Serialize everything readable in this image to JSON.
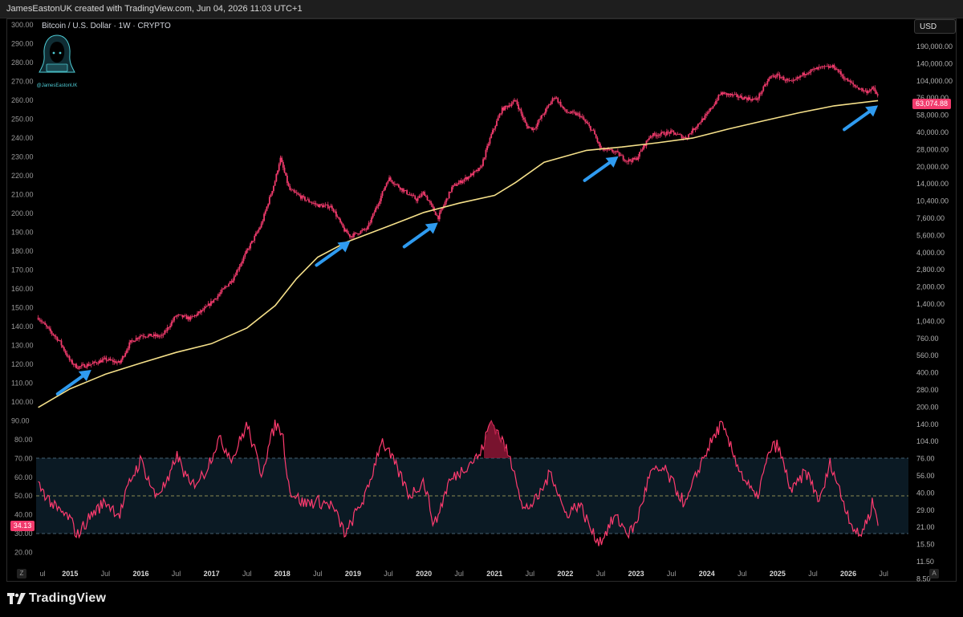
{
  "header": {
    "attribution": "JamesEastonUK created with TradingView.com, Jun 04, 2026 11:03 UTC+1"
  },
  "symbol": {
    "title": "Bitcoin / U.S. Dollar · 1W · CRYPTO"
  },
  "logo": {
    "caption": "@JamesEastonUK",
    "icon": "hooded-figure-icon"
  },
  "currency": "USD",
  "last_price_label": "63,074.88",
  "rsi_last_label": "34.13",
  "footer": {
    "brand": "TradingView",
    "icon": "tradingview-logo-icon",
    "left_button": "Z",
    "right_button": "A"
  },
  "colors": {
    "candles": "#f23b6d",
    "moving_average": "#f5e08a",
    "arrows": "#2f9bf0",
    "rsi_line": "#ff3b6f",
    "rsi_band": "#0b1a24",
    "band_border": "#5a7a90",
    "midline": "#b7b060"
  },
  "chart_data": [
    {
      "type": "candlestick",
      "scale": "log",
      "currency": "USD",
      "x_ticks": [
        "ul",
        "2015",
        "Jul",
        "2016",
        "Jul",
        "2017",
        "Jul",
        "2018",
        "Jul",
        "2019",
        "Jul",
        "2020",
        "Jul",
        "2021",
        "Jul",
        "2022",
        "Jul",
        "2023",
        "Jul",
        "2024",
        "Jul",
        "2025",
        "Jul",
        "2026",
        "Jul"
      ],
      "y_ticks_right": [
        "190,000.00",
        "140,000.00",
        "104,000.00",
        "76,000.00",
        "58,000.00",
        "40,000.00",
        "28,000.00",
        "20,000.00",
        "14,000.00",
        "10,400.00",
        "7,600.00",
        "5,600.00",
        "4,000.00",
        "2,800.00",
        "2,000.00",
        "1,400.00",
        "1,040.00",
        "760.00",
        "560.00",
        "400.00",
        "280.00",
        "200.00",
        "140.00",
        "104.00",
        "76.00",
        "56.00",
        "40.00",
        "29.00",
        "21.00",
        "15.50",
        "11.50",
        "8.50"
      ],
      "y_ticks_left": [
        "300.00",
        "290.00",
        "280.00",
        "270.00",
        "260.00",
        "250.00",
        "240.00",
        "230.00",
        "220.00",
        "210.00",
        "200.00",
        "190.00",
        "180.00",
        "170.00",
        "160.00",
        "150.00",
        "140.00",
        "130.00",
        "120.00",
        "110.00",
        "100.00",
        "90.00"
      ],
      "price_path": [
        [
          2014.55,
          620
        ],
        [
          2014.7,
          480
        ],
        [
          2014.85,
          380
        ],
        [
          2015.0,
          250
        ],
        [
          2015.1,
          220
        ],
        [
          2015.3,
          235
        ],
        [
          2015.5,
          260
        ],
        [
          2015.7,
          240
        ],
        [
          2015.85,
          370
        ],
        [
          2016.0,
          430
        ],
        [
          2016.3,
          420
        ],
        [
          2016.5,
          650
        ],
        [
          2016.7,
          610
        ],
        [
          2016.9,
          740
        ],
        [
          2017.1,
          1000
        ],
        [
          2017.3,
          1400
        ],
        [
          2017.5,
          2500
        ],
        [
          2017.7,
          4300
        ],
        [
          2017.9,
          11000
        ],
        [
          2017.97,
          17500
        ],
        [
          2018.1,
          9000
        ],
        [
          2018.3,
          7500
        ],
        [
          2018.5,
          6500
        ],
        [
          2018.7,
          6300
        ],
        [
          2018.87,
          3900
        ],
        [
          2018.96,
          3400
        ],
        [
          2019.2,
          4000
        ],
        [
          2019.4,
          8000
        ],
        [
          2019.5,
          11500
        ],
        [
          2019.7,
          9000
        ],
        [
          2019.9,
          7300
        ],
        [
          2020.0,
          8500
        ],
        [
          2020.2,
          5000
        ],
        [
          2020.4,
          9500
        ],
        [
          2020.6,
          11500
        ],
        [
          2020.8,
          14000
        ],
        [
          2020.95,
          28000
        ],
        [
          2021.1,
          48000
        ],
        [
          2021.3,
          58000
        ],
        [
          2021.45,
          34000
        ],
        [
          2021.55,
          32000
        ],
        [
          2021.7,
          45000
        ],
        [
          2021.85,
          64000
        ],
        [
          2022.0,
          46000
        ],
        [
          2022.2,
          43000
        ],
        [
          2022.4,
          30000
        ],
        [
          2022.5,
          21000
        ],
        [
          2022.7,
          20000
        ],
        [
          2022.87,
          16500
        ],
        [
          2023.0,
          17000
        ],
        [
          2023.2,
          28000
        ],
        [
          2023.5,
          30000
        ],
        [
          2023.7,
          26500
        ],
        [
          2023.9,
          37000
        ],
        [
          2024.0,
          43000
        ],
        [
          2024.2,
          68000
        ],
        [
          2024.5,
          62000
        ],
        [
          2024.7,
          59000
        ],
        [
          2024.9,
          96000
        ],
        [
          2025.0,
          98000
        ],
        [
          2025.2,
          84000
        ],
        [
          2025.4,
          105000
        ],
        [
          2025.6,
          115000
        ],
        [
          2025.8,
          118000
        ],
        [
          2025.95,
          92000
        ],
        [
          2026.1,
          78000
        ],
        [
          2026.25,
          70000
        ],
        [
          2026.35,
          75000
        ],
        [
          2026.42,
          63074.88
        ]
      ],
      "moving_average_200w": [
        [
          2014.55,
          95
        ],
        [
          2015.0,
          140
        ],
        [
          2015.5,
          190
        ],
        [
          2016.0,
          240
        ],
        [
          2016.5,
          300
        ],
        [
          2017.0,
          360
        ],
        [
          2017.5,
          500
        ],
        [
          2017.9,
          800
        ],
        [
          2018.2,
          1400
        ],
        [
          2018.5,
          2200
        ],
        [
          2018.9,
          3000
        ],
        [
          2019.5,
          4200
        ],
        [
          2020.0,
          5600
        ],
        [
          2020.5,
          6800
        ],
        [
          2021.0,
          8000
        ],
        [
          2021.3,
          10500
        ],
        [
          2021.7,
          16000
        ],
        [
          2022.3,
          20500
        ],
        [
          2022.8,
          22000
        ],
        [
          2023.3,
          24000
        ],
        [
          2023.8,
          26500
        ],
        [
          2024.3,
          32000
        ],
        [
          2024.8,
          38000
        ],
        [
          2025.3,
          45000
        ],
        [
          2025.8,
          52000
        ],
        [
          2026.42,
          58000
        ]
      ]
    },
    {
      "type": "line",
      "y_ticks": [
        "80.00",
        "70.00",
        "60.00",
        "50.00",
        "40.00",
        "30.00",
        "20.00"
      ],
      "bands": [
        30,
        50,
        70
      ],
      "rsi_path": [
        [
          2014.55,
          56
        ],
        [
          2014.8,
          43
        ],
        [
          2015.0,
          38
        ],
        [
          2015.1,
          29
        ],
        [
          2015.3,
          40
        ],
        [
          2015.5,
          47
        ],
        [
          2015.7,
          40
        ],
        [
          2015.85,
          58
        ],
        [
          2016.0,
          69
        ],
        [
          2016.2,
          50
        ],
        [
          2016.4,
          58
        ],
        [
          2016.5,
          72
        ],
        [
          2016.7,
          55
        ],
        [
          2016.9,
          62
        ],
        [
          2017.1,
          80
        ],
        [
          2017.3,
          70
        ],
        [
          2017.5,
          88
        ],
        [
          2017.7,
          62
        ],
        [
          2017.9,
          88
        ],
        [
          2018.0,
          84
        ],
        [
          2018.1,
          53
        ],
        [
          2018.3,
          46
        ],
        [
          2018.5,
          47
        ],
        [
          2018.7,
          45
        ],
        [
          2018.9,
          29
        ],
        [
          2019.0,
          38
        ],
        [
          2019.2,
          52
        ],
        [
          2019.4,
          80
        ],
        [
          2019.6,
          66
        ],
        [
          2019.8,
          50
        ],
        [
          2020.0,
          58
        ],
        [
          2020.15,
          34
        ],
        [
          2020.35,
          57
        ],
        [
          2020.6,
          66
        ],
        [
          2020.8,
          72
        ],
        [
          2020.95,
          90
        ],
        [
          2021.1,
          80
        ],
        [
          2021.3,
          62
        ],
        [
          2021.4,
          42
        ],
        [
          2021.6,
          48
        ],
        [
          2021.8,
          63
        ],
        [
          2022.0,
          40
        ],
        [
          2022.2,
          46
        ],
        [
          2022.4,
          29
        ],
        [
          2022.5,
          26
        ],
        [
          2022.7,
          39
        ],
        [
          2022.9,
          30
        ],
        [
          2023.0,
          35
        ],
        [
          2023.2,
          62
        ],
        [
          2023.4,
          64
        ],
        [
          2023.7,
          45
        ],
        [
          2023.9,
          66
        ],
        [
          2024.0,
          74
        ],
        [
          2024.2,
          88
        ],
        [
          2024.5,
          61
        ],
        [
          2024.7,
          48
        ],
        [
          2024.9,
          75
        ],
        [
          2025.0,
          77
        ],
        [
          2025.2,
          52
        ],
        [
          2025.4,
          63
        ],
        [
          2025.6,
          47
        ],
        [
          2025.75,
          68
        ],
        [
          2025.9,
          50
        ],
        [
          2026.05,
          35
        ],
        [
          2026.15,
          28
        ],
        [
          2026.3,
          40
        ],
        [
          2026.35,
          48
        ],
        [
          2026.42,
          34.13
        ]
      ]
    }
  ]
}
